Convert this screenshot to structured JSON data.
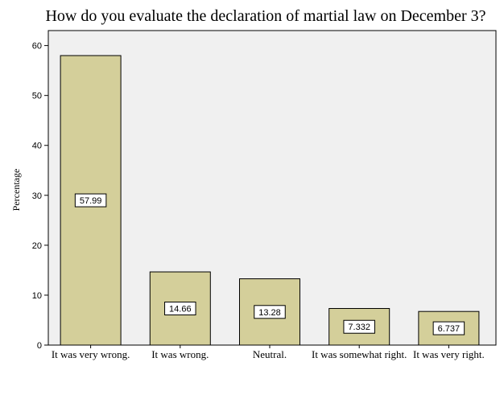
{
  "chart_data": {
    "type": "bar",
    "title": "How do you evaluate the declaration of martial law on December 3?",
    "xlabel": "",
    "ylabel": "Percentage",
    "categories": [
      "It was very wrong.",
      "It was wrong.",
      "Neutral.",
      "It was somewhat right.",
      "It was very right."
    ],
    "values": [
      57.99,
      14.66,
      13.28,
      7.332,
      6.737
    ],
    "data_labels": [
      "57.99",
      "14.66",
      "13.28",
      "7.332",
      "6.737"
    ],
    "ylim": [
      0,
      63
    ],
    "yticks": [
      0,
      10,
      20,
      30,
      40,
      50,
      60
    ],
    "grid": false,
    "bar_color": "#d4cf9a",
    "plot_background": "#f0f0f0"
  }
}
